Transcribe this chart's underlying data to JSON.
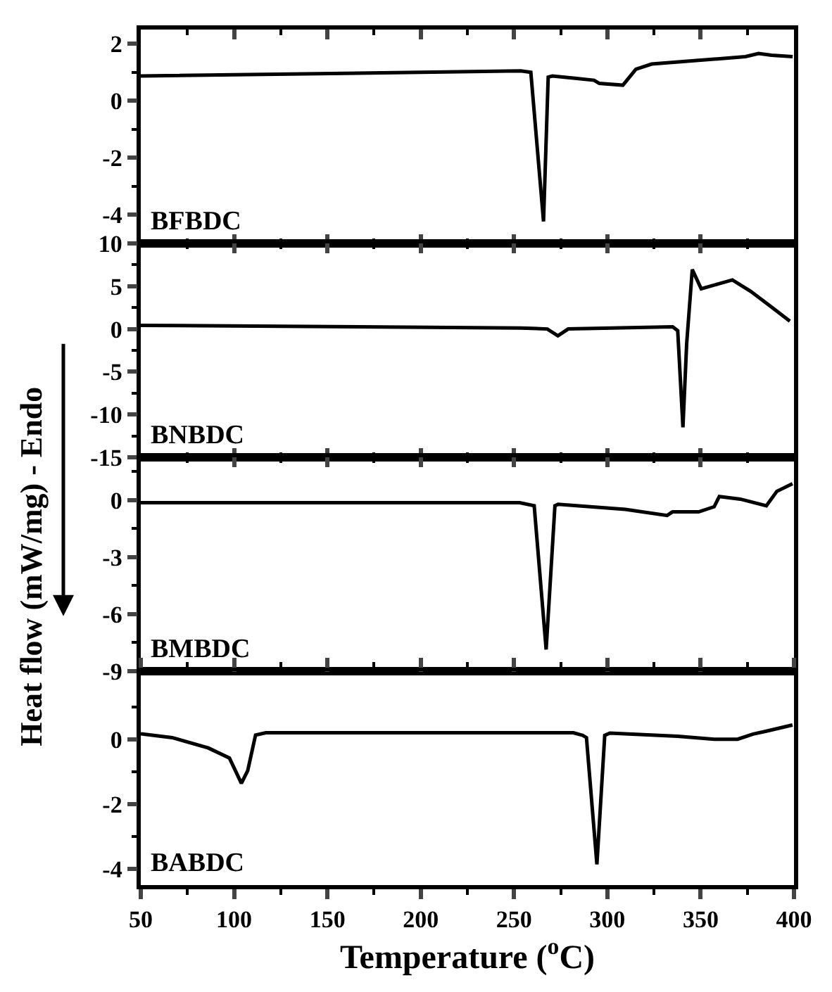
{
  "chart_data": [
    {
      "type": "line",
      "ylabel": "Heat flow (mW/mg) - Endo",
      "annotations": [
        "BFBDC"
      ],
      "tick_labels": "y",
      "x": [
        50,
        253.6,
        259,
        265.8,
        268.3,
        270.5,
        281.8,
        292.9,
        295.7,
        308.3,
        315.3,
        323.7,
        348.8,
        374,
        381,
        388,
        399.3
      ],
      "series": [
        {
          "color": "#000000",
          "values": [
            0.87,
            1.05,
            1.0,
            -4.23,
            0.83,
            0.87,
            0.8,
            0.72,
            0.61,
            0.55,
            1.11,
            1.29,
            1.42,
            1.55,
            1.66,
            1.6,
            1.55
          ]
        }
      ],
      "xlim": [
        50,
        400
      ],
      "ylim": [
        -5,
        2.5
      ],
      "xticks": [
        50,
        {
          "value": 75,
          "label": null
        },
        100,
        {
          "value": 125,
          "label": null
        },
        150,
        {
          "value": 175,
          "label": null
        },
        200,
        {
          "value": 225,
          "label": null
        },
        250,
        {
          "value": 275,
          "label": null
        },
        300,
        {
          "value": 325,
          "label": null
        },
        350,
        {
          "value": 375,
          "label": null
        },
        400
      ],
      "yticks": [
        -4,
        {
          "value": -3,
          "label": null
        },
        -2,
        {
          "value": -1,
          "label": null
        },
        0,
        {
          "value": 1,
          "label": null
        },
        2
      ]
    },
    {
      "type": "line",
      "annotations": [
        "BNBDC"
      ],
      "tick_labels": "y",
      "x": [
        50,
        253.6,
        267.8,
        273.5,
        279,
        335,
        337.7,
        340.5,
        342.5,
        345.5,
        350.3,
        360,
        367,
        376.8,
        388,
        397.8
      ],
      "series": [
        {
          "color": "#000000",
          "values": [
            0.43,
            0.12,
            0,
            -0.8,
            0,
            0.25,
            -0.2,
            -11.5,
            -1.7,
            6.95,
            4.7,
            5.3,
            5.73,
            4.4,
            2.56,
            0.91
          ]
        }
      ],
      "xlim": [
        50,
        400
      ],
      "ylim": [
        -15,
        10
      ],
      "xticks": [
        50,
        {
          "value": 75,
          "label": null
        },
        100,
        {
          "value": 125,
          "label": null
        },
        150,
        {
          "value": 175,
          "label": null
        },
        200,
        {
          "value": 225,
          "label": null
        },
        250,
        {
          "value": 275,
          "label": null
        },
        300,
        {
          "value": 325,
          "label": null
        },
        350,
        {
          "value": 375,
          "label": null
        },
        400
      ],
      "yticks": [
        -15,
        {
          "value": -12.5,
          "label": null
        },
        -10,
        {
          "value": -7.5,
          "label": null
        },
        -5,
        {
          "value": -2.5,
          "label": null
        },
        0,
        {
          "value": 2.5,
          "label": null
        },
        5,
        {
          "value": 7.5,
          "label": null
        },
        10
      ]
    },
    {
      "type": "line",
      "annotations": [
        "BMBDC"
      ],
      "tick_labels": "y",
      "x": [
        50,
        253,
        260.8,
        267.2,
        271.9,
        273.6,
        309.6,
        332,
        334.9,
        348.9,
        357.2,
        360,
        371.2,
        385.2,
        390.8,
        399.2
      ],
      "series": [
        {
          "color": "#000000",
          "values": [
            -0.14,
            -0.14,
            -0.3,
            -7.86,
            -0.3,
            -0.22,
            -0.49,
            -0.81,
            -0.62,
            -0.62,
            -0.35,
            0.19,
            0.05,
            -0.3,
            0.46,
            0.86
          ]
        }
      ],
      "xlim": [
        50,
        400
      ],
      "ylim": [
        -9,
        2.25
      ],
      "xticks": [
        50,
        {
          "value": 75,
          "label": null
        },
        100,
        {
          "value": 125,
          "label": null
        },
        150,
        {
          "value": 175,
          "label": null
        },
        200,
        {
          "value": 225,
          "label": null
        },
        250,
        {
          "value": 275,
          "label": null
        },
        300,
        {
          "value": 325,
          "label": null
        },
        350,
        {
          "value": 375,
          "label": null
        },
        400
      ],
      "yticks": [
        -9,
        {
          "value": -7.5,
          "label": null
        },
        -6,
        {
          "value": -4.5,
          "label": null
        },
        -3,
        {
          "value": -1.5,
          "label": null
        },
        0,
        {
          "value": 1.5,
          "label": null
        }
      ]
    },
    {
      "type": "line",
      "xlabel": "Temperature ($^{o}$C)",
      "annotations": [
        "BABDC"
      ],
      "x": [
        50,
        66.8,
        86.2,
        97.5,
        103.9,
        107.3,
        111.5,
        117,
        281.8,
        286.8,
        288.8,
        294.4,
        298.6,
        301.4,
        337.7,
        357.2,
        369.8,
        378.1,
        385.2,
        399.2
      ],
      "series": [
        {
          "color": "#000000",
          "values": [
            0.17,
            0.05,
            -0.27,
            -0.58,
            -1.36,
            -0.97,
            0.13,
            0.2,
            0.2,
            0.12,
            0.05,
            -3.86,
            0.12,
            0.19,
            0.09,
            0,
            0,
            0.16,
            0.25,
            0.44
          ]
        }
      ],
      "xlim": [
        50,
        400
      ],
      "ylim": [
        -4.5,
        2.1
      ],
      "xticks": [
        50,
        {
          "value": 75,
          "label": null
        },
        100,
        {
          "value": 125,
          "label": null
        },
        150,
        {
          "value": 175,
          "label": null
        },
        200,
        {
          "value": 225,
          "label": null
        },
        250,
        {
          "value": 275,
          "label": null
        },
        300,
        {
          "value": 325,
          "label": null
        },
        350,
        {
          "value": 375,
          "label": null
        },
        400
      ],
      "yticks": [
        -4,
        {
          "value": -3,
          "label": null
        },
        -2,
        {
          "value": -1,
          "label": null
        },
        0,
        {
          "value": 1,
          "label": null
        }
      ]
    }
  ]
}
